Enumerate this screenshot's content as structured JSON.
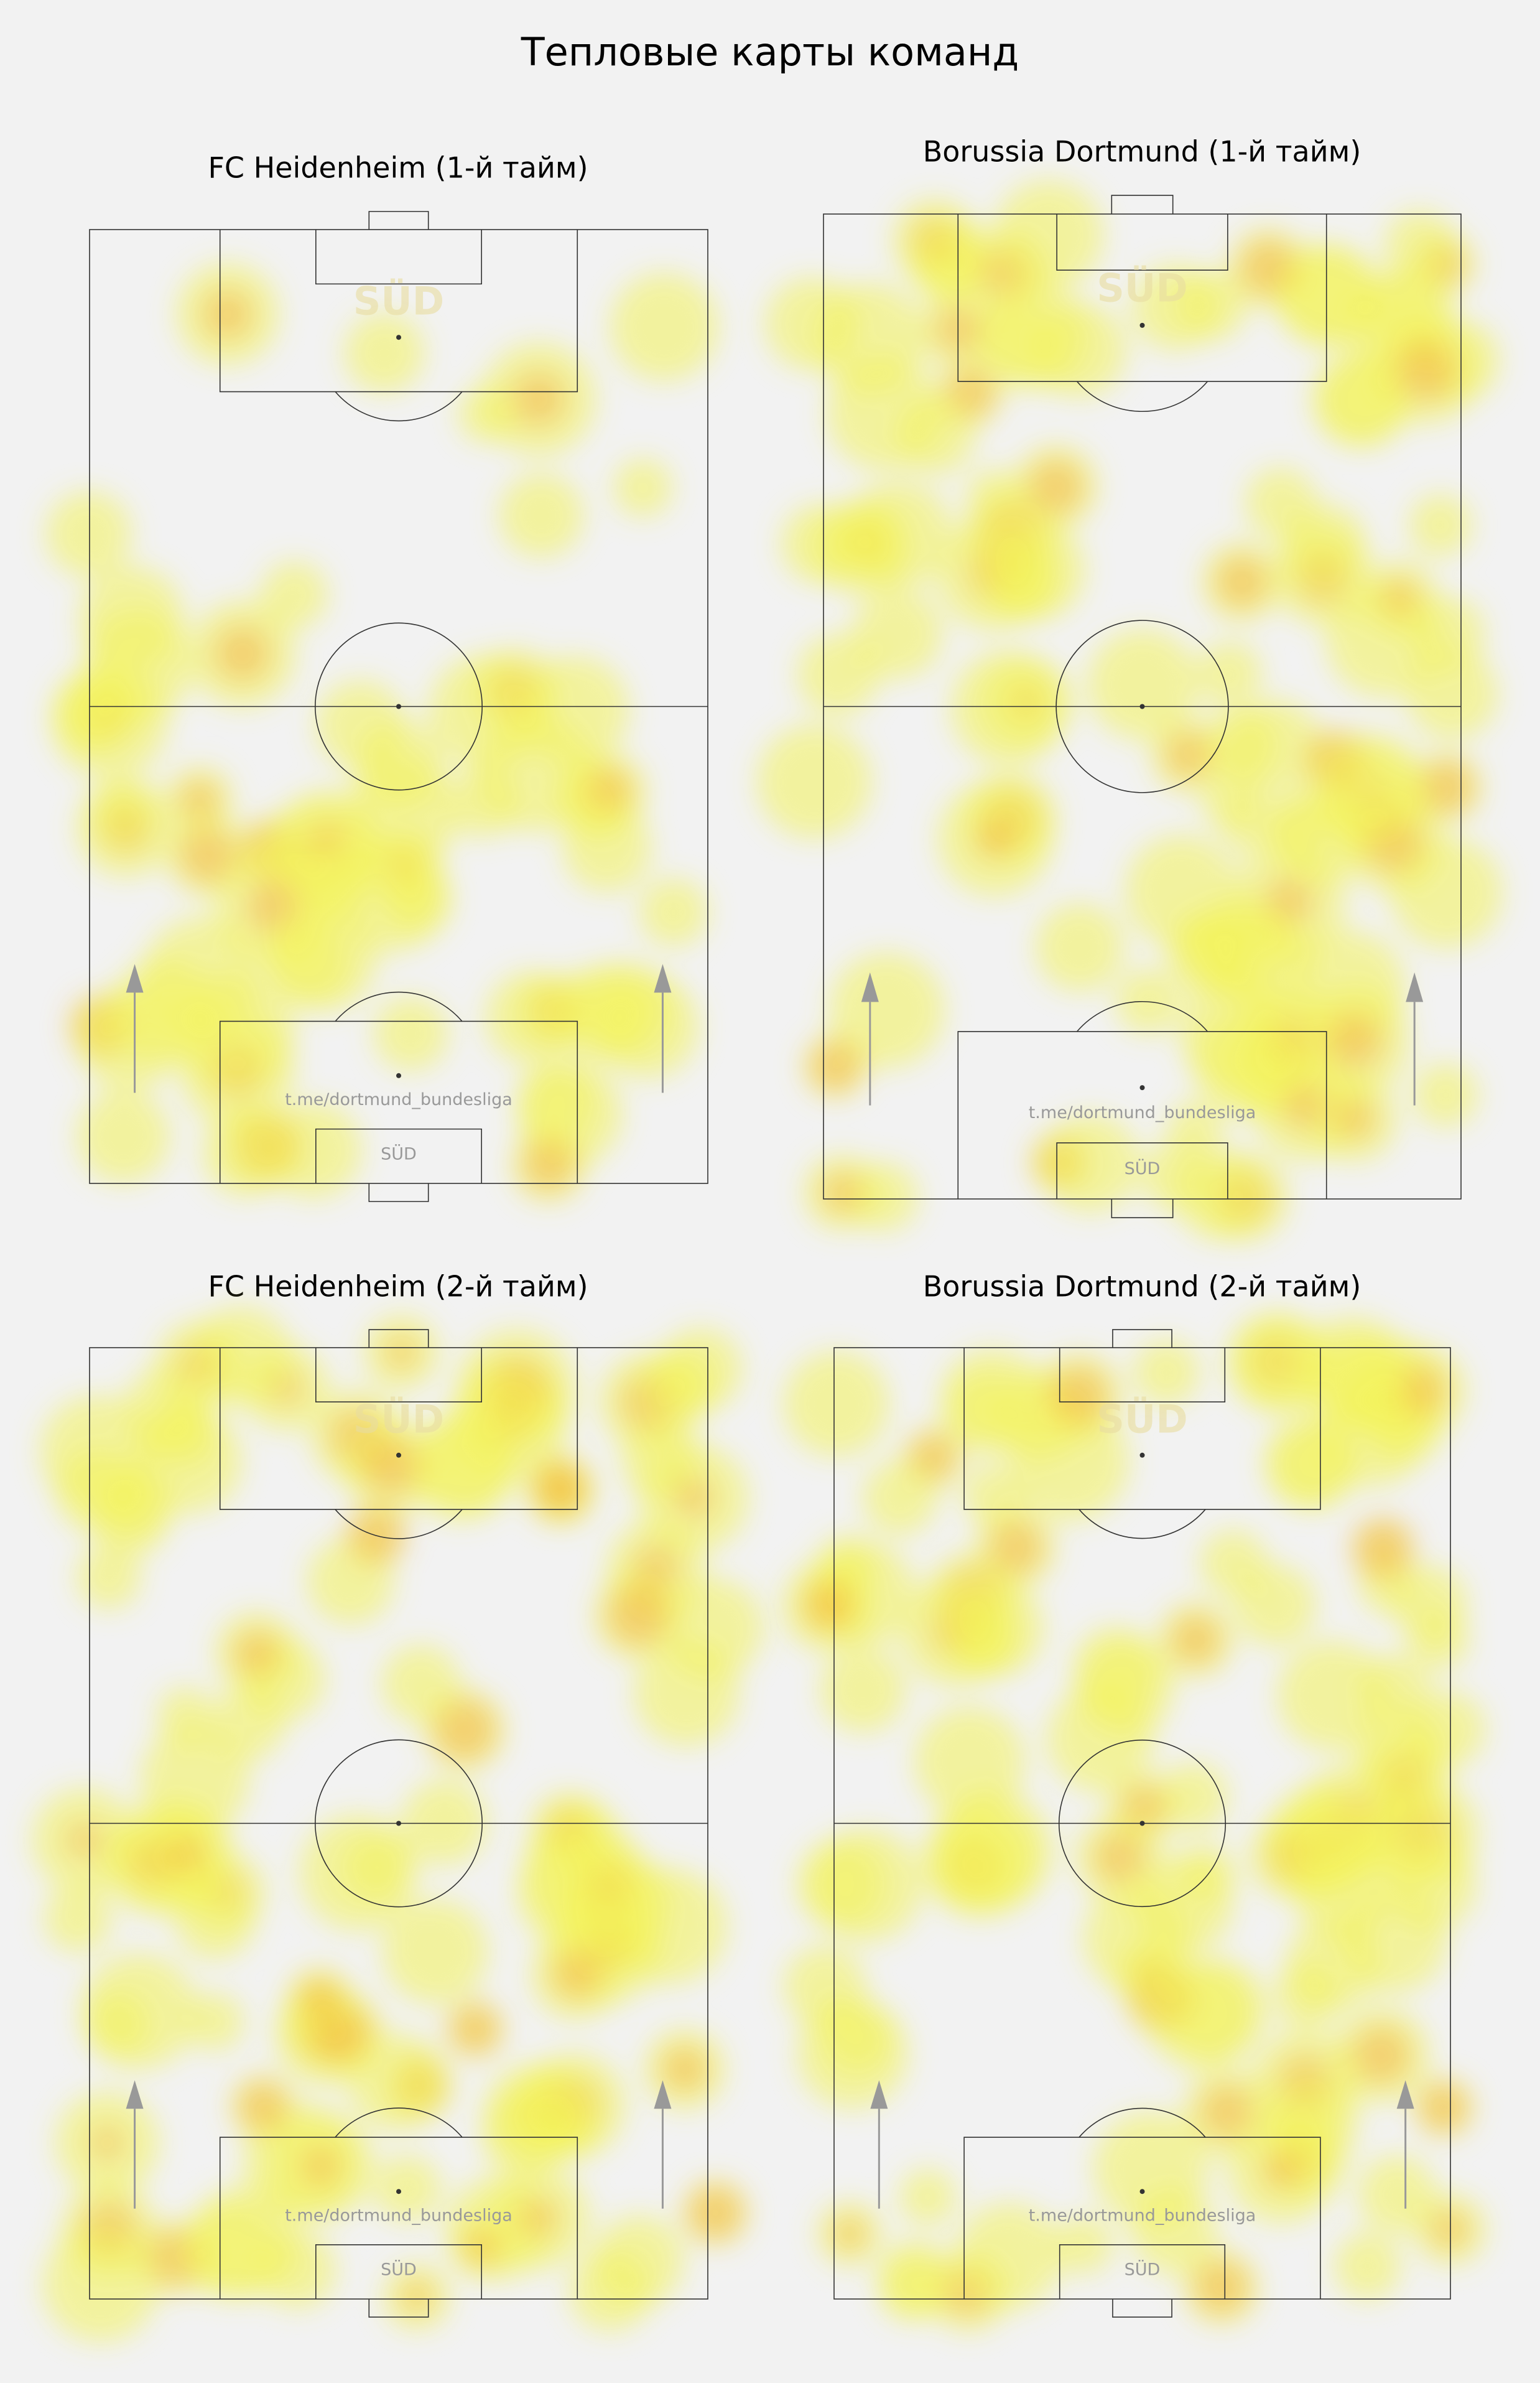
{
  "title": "Тепловые карты команд",
  "panels": [
    {
      "title": "FC Heidenheim (1-й тайм)",
      "logo": "SÜD",
      "link": "t.me/dortmund_bundesliga",
      "badge": "SÜD"
    },
    {
      "title": "Borussia Dortmund (1-й тайм)",
      "logo": "SÜD",
      "link": "t.me/dortmund_bundesliga",
      "badge": "SÜD"
    },
    {
      "title": "FC Heidenheim (2-й тайм)",
      "logo": "SÜD",
      "link": "t.me/dortmund_bundesliga",
      "badge": "SÜD"
    },
    {
      "title": "Borussia Dortmund (2-й тайм)",
      "logo": "SÜD",
      "link": "t.me/dortmund_bundesliga",
      "badge": "SÜD"
    }
  ]
}
